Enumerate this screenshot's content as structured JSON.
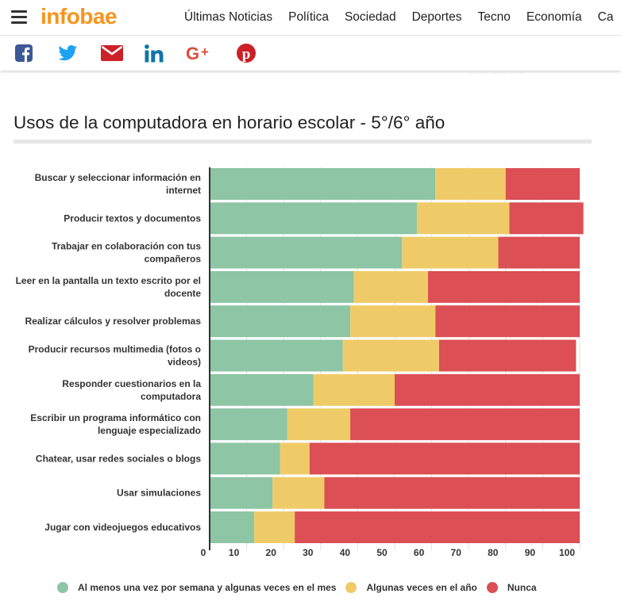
{
  "header": {
    "logo": "infobae",
    "nav": [
      "Últimas Noticias",
      "Política",
      "Sociedad",
      "Deportes",
      "Tecno",
      "Economía",
      "Ca"
    ]
  },
  "share": {
    "icons": [
      "facebook-icon",
      "twitter-icon",
      "email-icon",
      "linkedin-icon",
      "google-plus-icon",
      "pinterest-icon"
    ],
    "colors": {
      "facebook": "#3b5998",
      "twitter": "#1da1f2",
      "email": "#cc2128",
      "linkedin": "#0e76a8",
      "google": "#dd4b39",
      "pinterest": "#cb2027"
    }
  },
  "faded_caption": "... ..... ......... .. .....",
  "chart_data": {
    "type": "bar",
    "orientation": "horizontal",
    "stacked": true,
    "title": "Usos de la computadora en horario escolar - 5°/6° año",
    "categories": [
      "Buscar y seleccionar información en internet",
      "Producir textos y documentos",
      "Trabajar en colaboración con tus compañeros",
      "Leer en la pantalla un texto escrito por el docente",
      "Realizar cálculos y resolver problemas",
      "Producir recursos multimedia (fotos o videos)",
      "Responder cuestionarios en la computadora",
      "Escribir un programa informático con lenguaje especializado",
      "Chatear, usar redes sociales o blogs",
      "Usar simulaciones",
      "Jugar con videojuegos educativos"
    ],
    "series": [
      {
        "name": "Al menos una vez por semana y algunas veces en el mes",
        "color": "#8dc5a5",
        "values": [
          61,
          56,
          52,
          39,
          38,
          36,
          28,
          21,
          19,
          17,
          12
        ]
      },
      {
        "name": "Algunas veces en el año",
        "color": "#efcb68",
        "values": [
          19,
          25,
          26,
          20,
          23,
          26,
          22,
          17,
          8,
          14,
          11
        ]
      },
      {
        "name": "Nunca",
        "color": "#db4f55",
        "values": [
          20,
          20,
          22,
          41,
          39,
          37,
          50,
          62,
          73,
          69,
          77
        ]
      }
    ],
    "xlim": [
      0,
      100
    ],
    "xticks": [
      0,
      10,
      20,
      30,
      40,
      50,
      60,
      70,
      80,
      90,
      100
    ],
    "grid": true,
    "legend_position": "bottom"
  }
}
